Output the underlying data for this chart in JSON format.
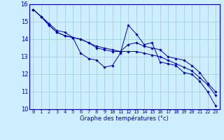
{
  "xlabel": "Graphe des températures (°c)",
  "bg_color": "#cceeff",
  "grid_color": "#99cccc",
  "line_color": "#0000bb",
  "spine_color": "#0000bb",
  "xmin": -0.5,
  "xmax": 23.5,
  "ymin": 10,
  "ymax": 16,
  "yticks": [
    10,
    11,
    12,
    13,
    14,
    15,
    16
  ],
  "xticks": [
    0,
    1,
    2,
    3,
    4,
    5,
    6,
    7,
    8,
    9,
    10,
    11,
    12,
    13,
    14,
    15,
    16,
    17,
    18,
    19,
    20,
    21,
    22,
    23
  ],
  "series1": [
    15.7,
    15.3,
    14.9,
    14.5,
    14.4,
    14.1,
    13.2,
    12.9,
    12.8,
    12.4,
    12.5,
    13.2,
    14.8,
    14.3,
    13.7,
    13.8,
    12.7,
    12.6,
    12.5,
    12.1,
    12.0,
    11.6,
    11.0,
    10.2
  ],
  "series2": [
    15.7,
    15.3,
    14.8,
    14.4,
    14.2,
    14.1,
    14.0,
    13.8,
    13.5,
    13.4,
    13.3,
    13.3,
    13.7,
    13.8,
    13.6,
    13.5,
    13.4,
    13.0,
    12.9,
    12.8,
    12.5,
    12.1,
    11.5,
    11.0
  ],
  "series3": [
    15.7,
    15.3,
    14.8,
    14.4,
    14.2,
    14.1,
    14.0,
    13.8,
    13.6,
    13.5,
    13.4,
    13.3,
    13.3,
    13.3,
    13.2,
    13.1,
    13.0,
    12.8,
    12.6,
    12.4,
    12.2,
    11.8,
    11.4,
    10.8
  ],
  "xlabel_fontsize": 6.0,
  "ytick_fontsize": 6.0,
  "xtick_fontsize": 5.0,
  "marker_size": 1.8,
  "linewidth": 0.7
}
